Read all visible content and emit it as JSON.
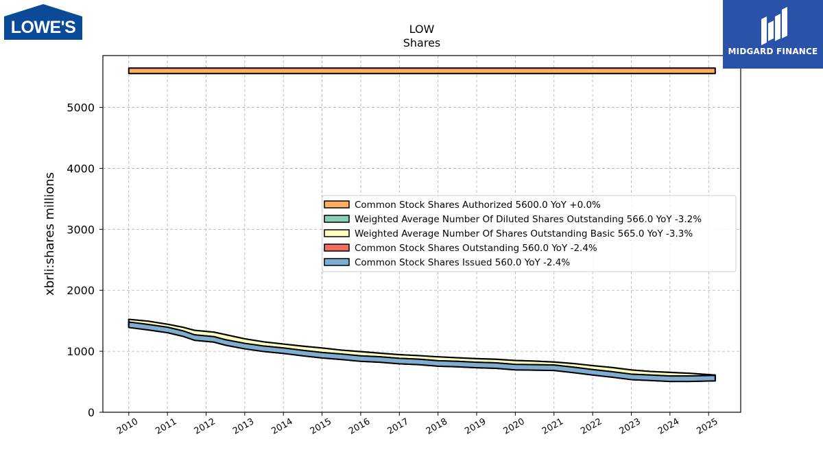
{
  "logos": {
    "left_text": "LOWE'S",
    "right_text": "MIDGARD FINANCE",
    "left_color": "#0a4a96",
    "right_color": "#2a52a8"
  },
  "chart_data": {
    "type": "area",
    "title": "LOW",
    "subtitle": "Shares",
    "xlabel": "",
    "ylabel": "xbrli:shares millions",
    "xlim": [
      2009.33,
      2025.83
    ],
    "ylim": [
      0,
      5850
    ],
    "x_ticks": [
      "2010",
      "2011",
      "2012",
      "2013",
      "2014",
      "2015",
      "2016",
      "2017",
      "2018",
      "2019",
      "2020",
      "2021",
      "2022",
      "2023",
      "2024",
      "2025"
    ],
    "y_ticks": [
      0,
      1000,
      2000,
      3000,
      4000,
      5000
    ],
    "grid": true,
    "legend_position": "center-right",
    "series": [
      {
        "name": "Common Stock Shares Authorized",
        "legend": "Common Stock Shares Authorized  5600.0 YoY +0.0%",
        "color": "#fdae61",
        "x": [
          2010.0,
          2025.17
        ],
        "values": [
          5600,
          5600
        ]
      },
      {
        "name": "Weighted Average Number Of Diluted Shares Outstanding",
        "legend": "Weighted Average Number Of Diluted Shares Outstanding  566.0 YoY -3.2%",
        "color": "#88cfb5",
        "x": [
          2010.0,
          2010.5,
          2011.0,
          2011.4,
          2011.7,
          2012.2,
          2012.5,
          2013.0,
          2013.5,
          2014.0,
          2014.5,
          2015.0,
          2015.5,
          2016.0,
          2016.5,
          2017.0,
          2017.5,
          2018.0,
          2018.5,
          2019.0,
          2019.5,
          2020.0,
          2020.5,
          2021.0,
          2021.5,
          2022.0,
          2022.5,
          2023.0,
          2023.5,
          2024.0,
          2024.5,
          2025.17
        ],
        "values": [
          1480,
          1450,
          1400,
          1350,
          1300,
          1270,
          1230,
          1160,
          1110,
          1075,
          1040,
          1010,
          975,
          950,
          925,
          900,
          885,
          865,
          850,
          835,
          825,
          805,
          795,
          780,
          755,
          720,
          690,
          650,
          625,
          610,
          595,
          566
        ]
      },
      {
        "name": "Weighted Average Number Of Shares Outstanding Basic",
        "legend": "Weighted Average Number Of Shares Outstanding Basic  565.0 YoY -3.3%",
        "color": "#ffffbf",
        "x": [
          2010.0,
          2010.5,
          2011.0,
          2011.4,
          2011.7,
          2012.2,
          2012.5,
          2013.0,
          2013.5,
          2014.0,
          2014.5,
          2015.0,
          2015.5,
          2016.0,
          2016.5,
          2017.0,
          2017.5,
          2018.0,
          2018.5,
          2019.0,
          2019.5,
          2020.0,
          2020.5,
          2021.0,
          2021.5,
          2022.0,
          2022.5,
          2023.0,
          2023.5,
          2024.0,
          2024.5,
          2025.17
        ],
        "values": [
          1478,
          1448,
          1398,
          1348,
          1298,
          1268,
          1228,
          1158,
          1108,
          1073,
          1038,
          1008,
          973,
          948,
          923,
          898,
          883,
          863,
          848,
          833,
          823,
          803,
          793,
          778,
          753,
          718,
          688,
          648,
          623,
          608,
          593,
          565
        ]
      },
      {
        "name": "Common Stock Shares Outstanding",
        "legend": "Common Stock Shares Outstanding  560.0 YoY -2.4%",
        "color": "#f46d63",
        "x": [
          2010.0,
          2010.5,
          2011.0,
          2011.4,
          2011.7,
          2012.2,
          2012.5,
          2013.0,
          2013.5,
          2014.0,
          2014.5,
          2015.0,
          2015.5,
          2016.0,
          2016.5,
          2017.0,
          2017.5,
          2018.0,
          2018.5,
          2019.0,
          2019.5,
          2020.0,
          2020.5,
          2021.0,
          2021.5,
          2022.0,
          2022.5,
          2023.0,
          2023.5,
          2024.0,
          2024.5,
          2025.17
        ],
        "values": [
          1435,
          1395,
          1350,
          1290,
          1225,
          1195,
          1145,
          1085,
          1040,
          1010,
          970,
          935,
          910,
          880,
          865,
          840,
          825,
          800,
          790,
          775,
          765,
          740,
          735,
          730,
          695,
          655,
          620,
          580,
          565,
          550,
          550,
          560
        ]
      },
      {
        "name": "Common Stock Shares Issued",
        "legend": "Common Stock Shares Issued  560.0 YoY -2.4%",
        "color": "#7fadd0",
        "x": [
          2010.0,
          2010.5,
          2011.0,
          2011.4,
          2011.7,
          2012.2,
          2012.5,
          2013.0,
          2013.5,
          2014.0,
          2014.5,
          2015.0,
          2015.5,
          2016.0,
          2016.5,
          2017.0,
          2017.5,
          2018.0,
          2018.5,
          2019.0,
          2019.5,
          2020.0,
          2020.5,
          2021.0,
          2021.5,
          2022.0,
          2022.5,
          2023.0,
          2023.5,
          2024.0,
          2024.5,
          2025.17
        ],
        "values": [
          1435,
          1395,
          1350,
          1290,
          1225,
          1195,
          1145,
          1085,
          1040,
          1010,
          970,
          935,
          910,
          880,
          865,
          840,
          825,
          800,
          790,
          775,
          765,
          740,
          735,
          730,
          695,
          655,
          620,
          580,
          565,
          550,
          550,
          560
        ]
      }
    ]
  }
}
